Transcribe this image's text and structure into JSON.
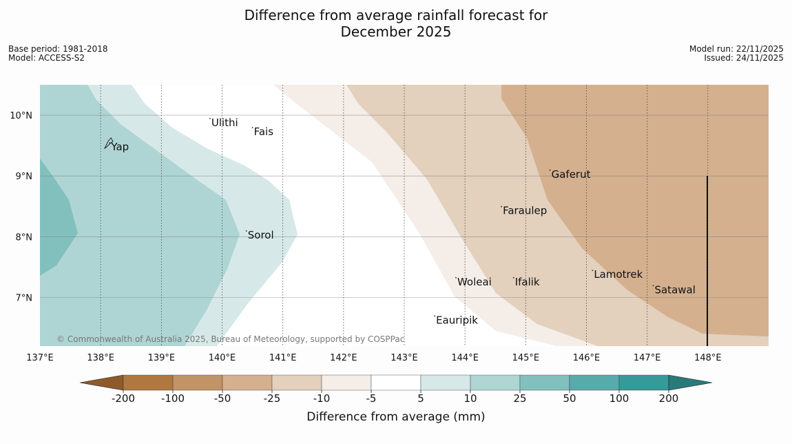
{
  "title": {
    "line1": "Difference from average rainfall forecast for",
    "line2": "December 2025"
  },
  "meta": {
    "base_period": "Base period: 1981-2018",
    "model": "Model: ACCESS-S2",
    "model_run": "Model run: 22/11/2025",
    "issued": "Issued: 24/11/2025"
  },
  "map": {
    "lon_range": [
      137.0,
      149.0
    ],
    "lat_range": [
      6.2,
      10.5
    ],
    "lon_ticks": [
      "137°E",
      "138°E",
      "139°E",
      "140°E",
      "141°E",
      "142°E",
      "143°E",
      "144°E",
      "145°E",
      "146°E",
      "147°E",
      "148°E"
    ],
    "lat_ticks": [
      "10°N",
      "9°N",
      "8°N",
      "7°N"
    ],
    "places": [
      {
        "name": "Ulithi",
        "lon": 139.8,
        "lat": 9.9
      },
      {
        "name": "Fais",
        "lon": 140.5,
        "lat": 9.75
      },
      {
        "name": "Yap",
        "lon": 138.15,
        "lat": 9.5
      },
      {
        "name": "Gaferut",
        "lon": 145.4,
        "lat": 9.05
      },
      {
        "name": "Faraulep",
        "lon": 144.6,
        "lat": 8.45
      },
      {
        "name": "Sorol",
        "lon": 140.4,
        "lat": 8.05
      },
      {
        "name": "Lamotrek",
        "lon": 146.1,
        "lat": 7.4
      },
      {
        "name": "Woleai",
        "lon": 143.85,
        "lat": 7.28
      },
      {
        "name": "Ifalik",
        "lon": 144.8,
        "lat": 7.28
      },
      {
        "name": "Satawal",
        "lon": 147.1,
        "lat": 7.15
      },
      {
        "name": "Eauripik",
        "lon": 143.5,
        "lat": 6.65
      }
    ],
    "copyright": "© Commonwealth of Australia 2025, Bureau of Meteorology, supported by COSPPac"
  },
  "colorbar": {
    "label": "Difference from average (mm)",
    "ticks": [
      "-200",
      "-100",
      "-50",
      "-25",
      "-10",
      "-5",
      "5",
      "10",
      "25",
      "50",
      "100",
      "200"
    ],
    "colors": [
      "#8e5a2c",
      "#b07840",
      "#c29367",
      "#d4b08f",
      "#e3d0bd",
      "#f4ede8",
      "#ffffff",
      "#d6e9e8",
      "#aed5d4",
      "#82c0be",
      "#58abaa",
      "#36999a",
      "#2a7a7a"
    ]
  }
}
